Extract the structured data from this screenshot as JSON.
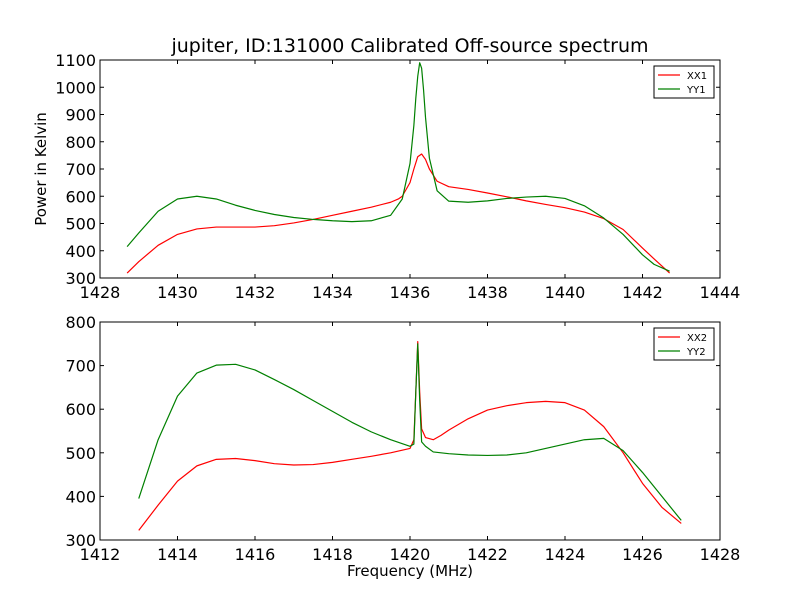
{
  "figure": {
    "title": "jupiter, ID:131000 Calibrated Off-source spectrum",
    "xlabel": "Frequency (MHz)",
    "ylabel": "Power in Kelvin"
  },
  "chart_data": [
    {
      "type": "line",
      "title": "jupiter, ID:131000 Calibrated Off-source spectrum",
      "xlabel": "",
      "ylabel": "Power in Kelvin",
      "xlim": [
        1428,
        1444
      ],
      "ylim": [
        300,
        1100
      ],
      "xticks": [
        1428,
        1430,
        1432,
        1434,
        1436,
        1438,
        1440,
        1442,
        1444
      ],
      "yticks": [
        300,
        400,
        500,
        600,
        700,
        800,
        900,
        1000,
        1100
      ],
      "grid": false,
      "legend": "top-right",
      "series": [
        {
          "name": "XX1",
          "color": "#ff0000",
          "x": [
            1428.7,
            1429.0,
            1429.5,
            1430.0,
            1430.5,
            1431.0,
            1431.5,
            1432.0,
            1432.5,
            1433.0,
            1433.5,
            1434.0,
            1434.5,
            1435.0,
            1435.5,
            1435.7,
            1435.8,
            1436.0,
            1436.1,
            1436.2,
            1436.3,
            1436.4,
            1436.5,
            1436.7,
            1437.0,
            1437.5,
            1438.0,
            1438.5,
            1439.0,
            1439.5,
            1440.0,
            1440.5,
            1441.0,
            1441.5,
            1442.0,
            1442.3,
            1442.7
          ],
          "y": [
            318,
            360,
            420,
            460,
            480,
            487,
            487,
            487,
            492,
            502,
            515,
            530,
            545,
            560,
            578,
            590,
            600,
            650,
            700,
            745,
            755,
            735,
            700,
            655,
            635,
            625,
            612,
            598,
            583,
            570,
            558,
            542,
            518,
            478,
            410,
            370,
            318
          ]
        },
        {
          "name": "YY1",
          "color": "#008000",
          "x": [
            1428.7,
            1429.0,
            1429.5,
            1430.0,
            1430.5,
            1431.0,
            1431.5,
            1432.0,
            1432.5,
            1433.0,
            1433.5,
            1434.0,
            1434.5,
            1435.0,
            1435.5,
            1435.8,
            1436.0,
            1436.1,
            1436.15,
            1436.2,
            1436.25,
            1436.3,
            1436.35,
            1436.4,
            1436.5,
            1436.7,
            1437.0,
            1437.5,
            1438.0,
            1438.5,
            1439.0,
            1439.5,
            1440.0,
            1440.5,
            1441.0,
            1441.5,
            1442.0,
            1442.3,
            1442.7
          ],
          "y": [
            415,
            465,
            545,
            590,
            600,
            590,
            567,
            548,
            533,
            522,
            515,
            510,
            507,
            510,
            530,
            590,
            720,
            860,
            960,
            1040,
            1090,
            1070,
            990,
            890,
            740,
            620,
            582,
            578,
            583,
            592,
            597,
            600,
            592,
            565,
            520,
            460,
            385,
            350,
            325
          ]
        }
      ]
    },
    {
      "type": "line",
      "title": "",
      "xlabel": "Frequency (MHz)",
      "ylabel": "",
      "xlim": [
        1412,
        1428
      ],
      "ylim": [
        300,
        800
      ],
      "xticks": [
        1412,
        1414,
        1416,
        1418,
        1420,
        1422,
        1424,
        1426,
        1428
      ],
      "yticks": [
        300,
        400,
        500,
        600,
        700,
        800
      ],
      "grid": false,
      "legend": "top-right",
      "series": [
        {
          "name": "XX2",
          "color": "#ff0000",
          "x": [
            1413.0,
            1413.5,
            1414.0,
            1414.5,
            1415.0,
            1415.5,
            1416.0,
            1416.5,
            1417.0,
            1417.5,
            1418.0,
            1418.5,
            1419.0,
            1419.5,
            1420.0,
            1420.1,
            1420.15,
            1420.2,
            1420.25,
            1420.3,
            1420.4,
            1420.6,
            1420.8,
            1421.0,
            1421.5,
            1422.0,
            1422.5,
            1423.0,
            1423.5,
            1424.0,
            1424.5,
            1425.0,
            1425.5,
            1426.0,
            1426.5,
            1427.0
          ],
          "y": [
            322,
            380,
            435,
            470,
            485,
            487,
            482,
            475,
            472,
            473,
            478,
            485,
            492,
            500,
            510,
            530,
            640,
            755,
            640,
            555,
            535,
            530,
            540,
            552,
            578,
            598,
            608,
            615,
            618,
            615,
            598,
            560,
            500,
            430,
            375,
            338
          ]
        },
        {
          "name": "YY2",
          "color": "#008000",
          "x": [
            1413.0,
            1413.5,
            1414.0,
            1414.5,
            1415.0,
            1415.5,
            1416.0,
            1416.5,
            1417.0,
            1417.5,
            1418.0,
            1418.5,
            1419.0,
            1419.5,
            1420.0,
            1420.1,
            1420.15,
            1420.2,
            1420.25,
            1420.3,
            1420.4,
            1420.6,
            1421.0,
            1421.5,
            1422.0,
            1422.5,
            1423.0,
            1423.5,
            1424.0,
            1424.5,
            1425.0,
            1425.5,
            1426.0,
            1426.5,
            1427.0
          ],
          "y": [
            395,
            530,
            630,
            683,
            701,
            703,
            690,
            668,
            645,
            620,
            595,
            570,
            548,
            530,
            515,
            520,
            640,
            750,
            620,
            525,
            515,
            502,
            498,
            495,
            494,
            495,
            500,
            510,
            520,
            530,
            533,
            505,
            455,
            400,
            345
          ]
        }
      ]
    }
  ]
}
